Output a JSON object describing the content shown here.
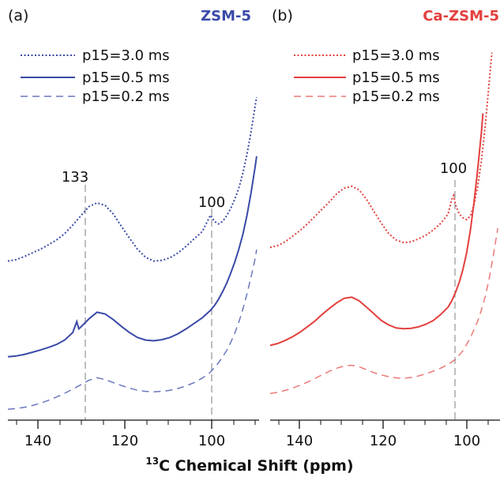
{
  "chart_data": [
    {
      "type": "line",
      "panel_label": "(a)",
      "sample": "ZSM-5",
      "color": "#3a4aa8",
      "xlabel_parts": {
        "superscript": "13",
        "main": "C Chemical Shift (ppm)"
      },
      "x_ticks": [
        140,
        120,
        100
      ],
      "xlim": [
        150,
        88
      ],
      "annotations": [
        {
          "label": "133",
          "x": 133
        },
        {
          "label": "100",
          "x": 100
        }
      ],
      "series": [
        {
          "name": "p15=3.0 ms",
          "style": "dotted",
          "points": [
            [
              150,
              0.88
            ],
            [
              148,
              0.92
            ],
            [
              146,
              1.0
            ],
            [
              144,
              1.1
            ],
            [
              142,
              1.2
            ],
            [
              140,
              1.32
            ],
            [
              138,
              1.45
            ],
            [
              136,
              1.62
            ],
            [
              134,
              1.85
            ],
            [
              132,
              2.1
            ],
            [
              130,
              2.35
            ],
            [
              128,
              2.45
            ],
            [
              126,
              2.38
            ],
            [
              124,
              2.15
            ],
            [
              122,
              1.82
            ],
            [
              120,
              1.5
            ],
            [
              118,
              1.2
            ],
            [
              116,
              0.98
            ],
            [
              114,
              0.88
            ],
            [
              112,
              0.9
            ],
            [
              110,
              0.97
            ],
            [
              108,
              1.1
            ],
            [
              106,
              1.28
            ],
            [
              104,
              1.48
            ],
            [
              102,
              1.68
            ],
            [
              100,
              2.12
            ],
            [
              99,
              1.95
            ],
            [
              98,
              1.88
            ],
            [
              97,
              1.95
            ],
            [
              96,
              2.1
            ],
            [
              95,
              2.3
            ],
            [
              94,
              2.55
            ],
            [
              93,
              2.85
            ],
            [
              92,
              3.25
            ],
            [
              91,
              3.75
            ],
            [
              90,
              4.35
            ],
            [
              89,
              5.05
            ],
            [
              88.6,
              5.3
            ]
          ]
        },
        {
          "name": "p15=0.5 ms",
          "style": "solid",
          "points": [
            [
              150,
              -0.1
            ],
            [
              148,
              -0.08
            ],
            [
              146,
              -0.04
            ],
            [
              144,
              0.02
            ],
            [
              142,
              0.08
            ],
            [
              140,
              0.15
            ],
            [
              138,
              0.23
            ],
            [
              136,
              0.35
            ],
            [
              134,
              0.55
            ],
            [
              133,
              0.85
            ],
            [
              132.5,
              0.65
            ],
            [
              132,
              0.7
            ],
            [
              130,
              0.92
            ],
            [
              128,
              1.1
            ],
            [
              126,
              1.05
            ],
            [
              124,
              0.9
            ],
            [
              122,
              0.72
            ],
            [
              120,
              0.55
            ],
            [
              118,
              0.42
            ],
            [
              116,
              0.35
            ],
            [
              114,
              0.33
            ],
            [
              112,
              0.36
            ],
            [
              110,
              0.42
            ],
            [
              108,
              0.52
            ],
            [
              106,
              0.65
            ],
            [
              104,
              0.8
            ],
            [
              102,
              0.95
            ],
            [
              100,
              1.15
            ],
            [
              99,
              1.28
            ],
            [
              98,
              1.45
            ],
            [
              97,
              1.65
            ],
            [
              96,
              1.88
            ],
            [
              95,
              2.15
            ],
            [
              94,
              2.45
            ],
            [
              93,
              2.8
            ],
            [
              92,
              3.2
            ],
            [
              91,
              3.7
            ],
            [
              90,
              4.3
            ],
            [
              89,
              5.0
            ],
            [
              88.6,
              5.3
            ]
          ]
        },
        {
          "name": "p15=0.2 ms",
          "style": "dashed",
          "points": [
            [
              150,
              -0.6
            ],
            [
              148,
              -0.58
            ],
            [
              146,
              -0.55
            ],
            [
              144,
              -0.5
            ],
            [
              142,
              -0.44
            ],
            [
              140,
              -0.36
            ],
            [
              138,
              -0.27
            ],
            [
              136,
              -0.17
            ],
            [
              134,
              -0.06
            ],
            [
              132,
              0.06
            ],
            [
              130,
              0.18
            ],
            [
              128,
              0.25
            ],
            [
              126,
              0.2
            ],
            [
              124,
              0.12
            ],
            [
              122,
              0.04
            ],
            [
              120,
              -0.03
            ],
            [
              118,
              -0.09
            ],
            [
              116,
              -0.12
            ],
            [
              114,
              -0.13
            ],
            [
              112,
              -0.12
            ],
            [
              110,
              -0.09
            ],
            [
              108,
              -0.04
            ],
            [
              106,
              0.03
            ],
            [
              104,
              0.12
            ],
            [
              102,
              0.24
            ],
            [
              100,
              0.4
            ],
            [
              98,
              0.65
            ],
            [
              96,
              0.98
            ],
            [
              95,
              1.2
            ],
            [
              94,
              1.45
            ],
            [
              93,
              1.75
            ],
            [
              92,
              2.1
            ],
            [
              91,
              2.5
            ],
            [
              90,
              2.95
            ],
            [
              89,
              3.45
            ],
            [
              88.6,
              3.7
            ]
          ]
        }
      ]
    },
    {
      "type": "line",
      "panel_label": "(b)",
      "sample": "Ca-ZSM-5",
      "color": "#e2403e",
      "xlabel_parts": {
        "superscript": "13",
        "main": "C Chemical Shift (ppm)"
      },
      "x_ticks": [
        140,
        120,
        100
      ],
      "xlim": [
        150,
        88
      ],
      "annotations": [
        {
          "label": "100",
          "x": 100.5
        }
      ],
      "series": [
        {
          "name": "p15=3.0 ms",
          "style": "dotted",
          "points": [
            [
              150,
              0.95
            ],
            [
              148,
              1.0
            ],
            [
              146,
              1.1
            ],
            [
              144,
              1.25
            ],
            [
              142,
              1.4
            ],
            [
              140,
              1.58
            ],
            [
              138,
              1.78
            ],
            [
              136,
              1.98
            ],
            [
              134,
              2.18
            ],
            [
              132,
              2.4
            ],
            [
              130,
              2.55
            ],
            [
              128,
              2.6
            ],
            [
              126,
              2.5
            ],
            [
              124,
              2.25
            ],
            [
              122,
              1.92
            ],
            [
              120,
              1.6
            ],
            [
              118,
              1.32
            ],
            [
              116,
              1.15
            ],
            [
              114,
              1.08
            ],
            [
              112,
              1.1
            ],
            [
              110,
              1.18
            ],
            [
              108,
              1.28
            ],
            [
              106,
              1.42
            ],
            [
              104,
              1.6
            ],
            [
              102,
              1.85
            ],
            [
              101,
              2.25
            ],
            [
              100.5,
              2.35
            ],
            [
              100,
              2.1
            ],
            [
              99,
              1.85
            ],
            [
              98,
              1.75
            ],
            [
              97,
              1.7
            ],
            [
              96,
              1.8
            ],
            [
              95,
              2.1
            ],
            [
              94,
              2.6
            ],
            [
              93,
              3.3
            ],
            [
              92,
              4.2
            ],
            [
              91,
              5.3
            ],
            [
              90.2,
              6.2
            ]
          ]
        },
        {
          "name": "p15=0.5 ms",
          "style": "solid",
          "points": [
            [
              150,
              -0.05
            ],
            [
              148,
              0.0
            ],
            [
              146,
              0.08
            ],
            [
              144,
              0.18
            ],
            [
              142,
              0.3
            ],
            [
              140,
              0.45
            ],
            [
              138,
              0.6
            ],
            [
              136,
              0.78
            ],
            [
              134,
              0.95
            ],
            [
              132,
              1.1
            ],
            [
              130,
              1.22
            ],
            [
              128,
              1.25
            ],
            [
              126,
              1.15
            ],
            [
              124,
              0.98
            ],
            [
              122,
              0.8
            ],
            [
              120,
              0.62
            ],
            [
              118,
              0.5
            ],
            [
              116,
              0.42
            ],
            [
              114,
              0.4
            ],
            [
              112,
              0.41
            ],
            [
              110,
              0.45
            ],
            [
              108,
              0.52
            ],
            [
              106,
              0.62
            ],
            [
              104,
              0.78
            ],
            [
              102,
              0.98
            ],
            [
              101,
              1.15
            ],
            [
              100,
              1.38
            ],
            [
              99,
              1.65
            ],
            [
              98,
              2.0
            ],
            [
              97,
              2.45
            ],
            [
              96,
              3.05
            ],
            [
              95,
              3.8
            ],
            [
              94,
              4.7
            ],
            [
              93,
              5.7
            ],
            [
              92.6,
              6.2
            ]
          ]
        },
        {
          "name": "p15=0.2 ms",
          "style": "dashed",
          "points": [
            [
              150,
              -0.6
            ],
            [
              148,
              -0.57
            ],
            [
              146,
              -0.52
            ],
            [
              144,
              -0.46
            ],
            [
              142,
              -0.38
            ],
            [
              140,
              -0.3
            ],
            [
              138,
              -0.2
            ],
            [
              136,
              -0.1
            ],
            [
              134,
              0.0
            ],
            [
              132,
              0.08
            ],
            [
              130,
              0.14
            ],
            [
              128,
              0.16
            ],
            [
              126,
              0.12
            ],
            [
              124,
              0.04
            ],
            [
              122,
              -0.04
            ],
            [
              120,
              -0.1
            ],
            [
              118,
              -0.15
            ],
            [
              116,
              -0.18
            ],
            [
              114,
              -0.19
            ],
            [
              112,
              -0.17
            ],
            [
              110,
              -0.13
            ],
            [
              108,
              -0.07
            ],
            [
              106,
              0.0
            ],
            [
              104,
              0.08
            ],
            [
              102,
              0.18
            ],
            [
              100,
              0.32
            ],
            [
              98,
              0.55
            ],
            [
              96,
              0.9
            ],
            [
              94,
              1.35
            ],
            [
              93,
              1.65
            ],
            [
              92,
              2.0
            ],
            [
              91,
              2.45
            ],
            [
              90,
              3.0
            ],
            [
              89,
              3.6
            ],
            [
              88.6,
              3.85
            ]
          ]
        }
      ]
    }
  ]
}
